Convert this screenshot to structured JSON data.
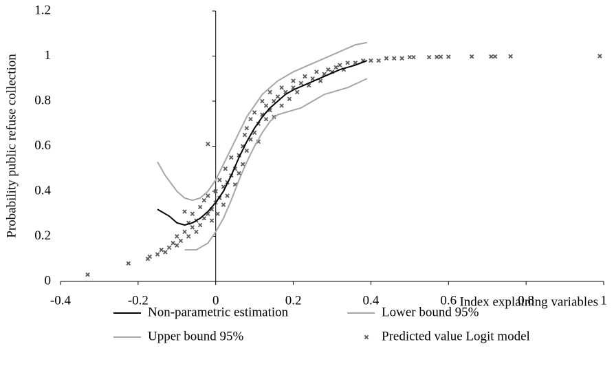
{
  "chart_data": {
    "type": "scatter",
    "x_label": "Index explaining variables",
    "y_label": "Probability public refuse collection",
    "xlim": [
      -0.4,
      1
    ],
    "xticks": [
      -0.4,
      -0.2,
      0,
      0.2,
      0.4,
      0.6,
      0.8,
      1
    ],
    "ylim": [
      0,
      1.2
    ],
    "yticks": [
      0,
      0.2,
      0.4,
      0.6,
      0.8,
      1,
      1.2
    ],
    "series": [
      {
        "name": "Non-parametric estimation",
        "color": "#000000",
        "mode": "line",
        "x": [
          -0.15,
          -0.12,
          -0.1,
          -0.08,
          -0.06,
          -0.04,
          -0.02,
          0,
          0.02,
          0.04,
          0.06,
          0.08,
          0.1,
          0.12,
          0.14,
          0.16,
          0.18,
          0.2,
          0.24,
          0.28,
          0.32,
          0.36,
          0.39
        ],
        "values": [
          0.32,
          0.29,
          0.26,
          0.25,
          0.26,
          0.28,
          0.31,
          0.35,
          0.4,
          0.47,
          0.55,
          0.62,
          0.68,
          0.73,
          0.77,
          0.8,
          0.83,
          0.85,
          0.88,
          0.91,
          0.94,
          0.96,
          0.98
        ]
      },
      {
        "name": "Lower bound 95%",
        "color": "#a6a6a6",
        "mode": "line",
        "x": [
          -0.08,
          -0.05,
          -0.02,
          0,
          0.02,
          0.04,
          0.06,
          0.08,
          0.1,
          0.12,
          0.14,
          0.16,
          0.18,
          0.2,
          0.22,
          0.24,
          0.26,
          0.28,
          0.3,
          0.34,
          0.39
        ],
        "values": [
          0.14,
          0.14,
          0.17,
          0.22,
          0.28,
          0.36,
          0.45,
          0.53,
          0.6,
          0.66,
          0.71,
          0.74,
          0.75,
          0.76,
          0.77,
          0.79,
          0.81,
          0.83,
          0.84,
          0.86,
          0.9
        ]
      },
      {
        "name": "Upper bound 95%",
        "color": "#a6a6a6",
        "mode": "line",
        "x": [
          -0.15,
          -0.13,
          -0.1,
          -0.08,
          -0.06,
          -0.04,
          -0.02,
          0,
          0.02,
          0.04,
          0.06,
          0.08,
          0.1,
          0.12,
          0.14,
          0.16,
          0.2,
          0.24,
          0.28,
          0.32,
          0.36,
          0.39
        ],
        "values": [
          0.53,
          0.47,
          0.4,
          0.37,
          0.36,
          0.37,
          0.4,
          0.45,
          0.52,
          0.59,
          0.66,
          0.73,
          0.78,
          0.83,
          0.86,
          0.89,
          0.93,
          0.96,
          0.99,
          1.02,
          1.05,
          1.06
        ]
      },
      {
        "name": "Predicted value Logit model",
        "color": "#595959",
        "mode": "markers",
        "x": [
          -0.33,
          -0.225,
          -0.175,
          -0.17,
          -0.15,
          -0.14,
          -0.13,
          -0.12,
          -0.11,
          -0.1,
          -0.1,
          -0.09,
          -0.08,
          -0.08,
          -0.07,
          -0.07,
          -0.06,
          -0.06,
          -0.05,
          -0.05,
          -0.04,
          -0.04,
          -0.03,
          -0.03,
          -0.02,
          -0.02,
          -0.01,
          -0.01,
          0,
          0,
          0.005,
          0.01,
          0.01,
          0.02,
          0.02,
          0.025,
          0.03,
          0.03,
          0.04,
          0.04,
          -0.02,
          0.05,
          0.05,
          0.06,
          0.06,
          0.07,
          0.07,
          0.075,
          0.08,
          0.08,
          0.09,
          0.09,
          0.1,
          0.1,
          0.11,
          0.11,
          0.12,
          0.12,
          0.13,
          0.13,
          0.14,
          0.14,
          0.15,
          0.15,
          0.16,
          0.17,
          0.17,
          0.18,
          0.19,
          0.2,
          0.2,
          0.21,
          0.22,
          0.23,
          0.24,
          0.25,
          0.26,
          0.27,
          0.28,
          0.29,
          0.3,
          0.31,
          0.32,
          0.33,
          0.34,
          0.36,
          0.38,
          0.4,
          0.42,
          0.44,
          0.46,
          0.48,
          0.5,
          0.51,
          0.55,
          0.57,
          0.58,
          0.6,
          0.66,
          0.71,
          0.72,
          0.76,
          0.99
        ],
        "values": [
          0.03,
          0.08,
          0.1,
          0.11,
          0.12,
          0.14,
          0.13,
          0.15,
          0.17,
          0.16,
          0.2,
          0.18,
          0.22,
          0.31,
          0.2,
          0.26,
          0.24,
          0.3,
          0.22,
          0.27,
          0.25,
          0.33,
          0.28,
          0.36,
          0.3,
          0.38,
          0.32,
          0.27,
          0.35,
          0.4,
          0.3,
          0.37,
          0.45,
          0.42,
          0.34,
          0.5,
          0.44,
          0.38,
          0.47,
          0.55,
          0.61,
          0.5,
          0.43,
          0.56,
          0.48,
          0.6,
          0.52,
          0.65,
          0.58,
          0.68,
          0.63,
          0.72,
          0.66,
          0.75,
          0.7,
          0.62,
          0.74,
          0.8,
          0.72,
          0.78,
          0.76,
          0.84,
          0.8,
          0.73,
          0.82,
          0.78,
          0.86,
          0.84,
          0.81,
          0.86,
          0.89,
          0.84,
          0.88,
          0.91,
          0.87,
          0.9,
          0.93,
          0.89,
          0.92,
          0.94,
          0.93,
          0.95,
          0.96,
          0.94,
          0.97,
          0.97,
          0.98,
          0.98,
          0.98,
          0.99,
          0.99,
          0.99,
          0.995,
          0.995,
          0.995,
          0.996,
          0.997,
          0.997,
          0.998,
          0.998,
          0.998,
          0.999,
          1.0
        ]
      }
    ]
  }
}
